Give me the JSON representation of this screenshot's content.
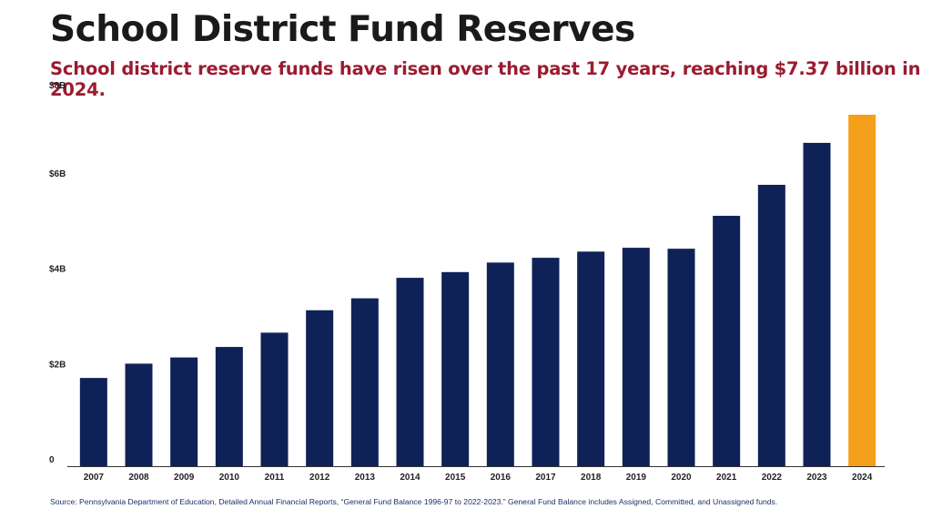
{
  "header": {
    "title": "School District Fund Reserves",
    "subtitle": "School district reserve funds have risen over the past 17 years, reaching $7.37 billion in 2024."
  },
  "footer": {
    "source": "Source: Pennsylvania Department of Education, Detailed Annual Financial Reports, “General Fund Balance 1996-97 to 2022-2023.” General Fund Balance includes Assigned, Committed, and Unassigned funds."
  },
  "colors": {
    "bar": "#0f2257",
    "highlight": "#f5a01a",
    "axis": "#333333",
    "title": "#1a1a1a",
    "subtitle": "#9b1b30"
  },
  "chart_data": {
    "type": "bar",
    "title": "School District Fund Reserves",
    "categories": [
      "2007",
      "2008",
      "2009",
      "2010",
      "2011",
      "2012",
      "2013",
      "2014",
      "2015",
      "2016",
      "2017",
      "2018",
      "2019",
      "2020",
      "2021",
      "2022",
      "2023",
      "2024"
    ],
    "values": [
      1.85,
      2.15,
      2.28,
      2.5,
      2.8,
      3.27,
      3.52,
      3.95,
      4.07,
      4.27,
      4.37,
      4.5,
      4.58,
      4.56,
      5.25,
      5.9,
      6.78,
      7.37
    ],
    "value_unit": "billion USD",
    "highlight_category": "2024",
    "ylim": [
      0,
      8
    ],
    "yticks": [
      0,
      2,
      4,
      6,
      8
    ],
    "ytick_labels": [
      "0",
      "$2B",
      "$4B",
      "$6B",
      "$8B"
    ],
    "grid": false,
    "legend": "none"
  }
}
